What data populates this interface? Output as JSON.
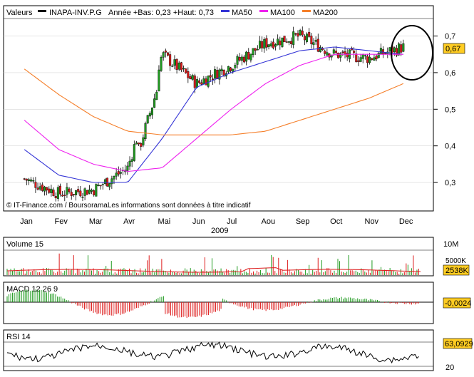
{
  "header": {
    "label": "Valeurs",
    "ticker": "INAPA-INV.P.G",
    "range_text": "Année +Bas: 0,23 +Haut: 0,73",
    "ma50": "MA50",
    "ma100": "MA100",
    "ma200": "MA200"
  },
  "colors": {
    "ma50": "#3535d6",
    "ma100": "#ee22ee",
    "ma200": "#f57f2a",
    "up": "#1f9a1f",
    "down": "#dd1b1b",
    "badge": "#ffcc22",
    "grid": "#d8d8d8"
  },
  "footer_text": "© IT-Finance.com / BoursoramaLes informations sont données à titre indicatif",
  "months": [
    "Jan",
    "Fev",
    "Mar",
    "Avr",
    "Mai",
    "Jun",
    "Jul",
    "Aou",
    "Sep",
    "Oct",
    "Nov",
    "Dec"
  ],
  "year": "2009",
  "price_badge": "0,67",
  "volume": {
    "title": "Volume 15",
    "ticks": [
      "10M",
      "5000K"
    ],
    "badge": "2538K"
  },
  "macd": {
    "title": "MACD 12 26 9",
    "badge": "-0,0024"
  },
  "rsi": {
    "title": "RSI 14",
    "badge": "63,0929",
    "tick_low": "20"
  },
  "chart_data": {
    "type": "line",
    "y_ticks": [
      0.3,
      0.4,
      0.5,
      0.6,
      0.7
    ],
    "y_tick_labels": [
      "0,3",
      "0,4",
      "0,5",
      "0,6",
      "0,7"
    ],
    "ylim": [
      0.23,
      0.74
    ],
    "close_monthly": [
      0.31,
      0.27,
      0.28,
      0.34,
      0.65,
      0.57,
      0.62,
      0.68,
      0.7,
      0.65,
      0.64,
      0.67
    ],
    "series": [
      {
        "name": "MA50",
        "values": [
          0.39,
          0.32,
          0.3,
          0.3,
          0.42,
          0.56,
          0.6,
          0.63,
          0.66,
          0.67,
          0.66,
          0.65
        ]
      },
      {
        "name": "MA100",
        "values": [
          0.47,
          0.39,
          0.35,
          0.33,
          0.34,
          0.42,
          0.5,
          0.57,
          0.62,
          0.65,
          0.65,
          0.65
        ]
      },
      {
        "name": "MA200",
        "values": [
          0.61,
          0.54,
          0.48,
          0.44,
          0.43,
          0.43,
          0.43,
          0.44,
          0.47,
          0.5,
          0.53,
          0.57
        ]
      }
    ],
    "grid": true,
    "legend_placement": "top"
  }
}
